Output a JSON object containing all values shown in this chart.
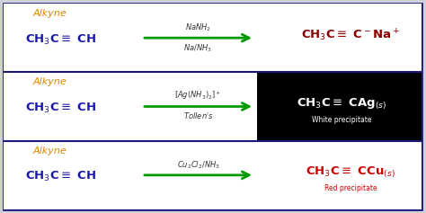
{
  "bg_color": "#d0d0d8",
  "border_color": "#1a1a7a",
  "fig_w": 4.74,
  "fig_h": 2.37,
  "dpi": 100,
  "rows": [
    {
      "label": "Alkyne",
      "label_color": "#dd8800",
      "reactant": "CH$_3$C$\\equiv$ CH",
      "reactant_color": "#1a1aaa",
      "reagent_line1": "$NaNH_2$",
      "reagent_line2": "$Na/NH_3$",
      "reagent_color": "#333333",
      "arrow_color": "#009900",
      "product": "CH$_3$C$\\equiv$ C$^-$Na$^+$",
      "product_color": "#8b0000",
      "product_bg": null,
      "precipitate_label": null,
      "precipitate_color": null
    },
    {
      "label": "Alkyne",
      "label_color": "#dd8800",
      "reactant": "CH$_3$C$\\equiv$ CH",
      "reactant_color": "#1a1aaa",
      "reagent_line1": "$[Ag(NH_3)_2]^+$",
      "reagent_line2": "$Tollen's$",
      "reagent_color": "#333333",
      "arrow_color": "#009900",
      "product": "CH$_3$C$\\equiv$ CAg$_{(s)}$",
      "product_color": "#ffffff",
      "product_bg": "#000000",
      "precipitate_label": "White precipitate",
      "precipitate_color": "#ffffff"
    },
    {
      "label": "Alkyne",
      "label_color": "#dd8800",
      "reactant": "CH$_3$C$\\equiv$ CH",
      "reactant_color": "#1a1aaa",
      "reagent_line1": "$Cu_2Cl_2/NH_3$",
      "reagent_line2": null,
      "reagent_color": "#333333",
      "arrow_color": "#009900",
      "product": "CH$_3$C$\\equiv$ CCu$_{(s)}$",
      "product_color": "#cc0000",
      "product_bg": null,
      "precipitate_label": "Red precipitate",
      "precipitate_color": "#cc0000"
    }
  ]
}
